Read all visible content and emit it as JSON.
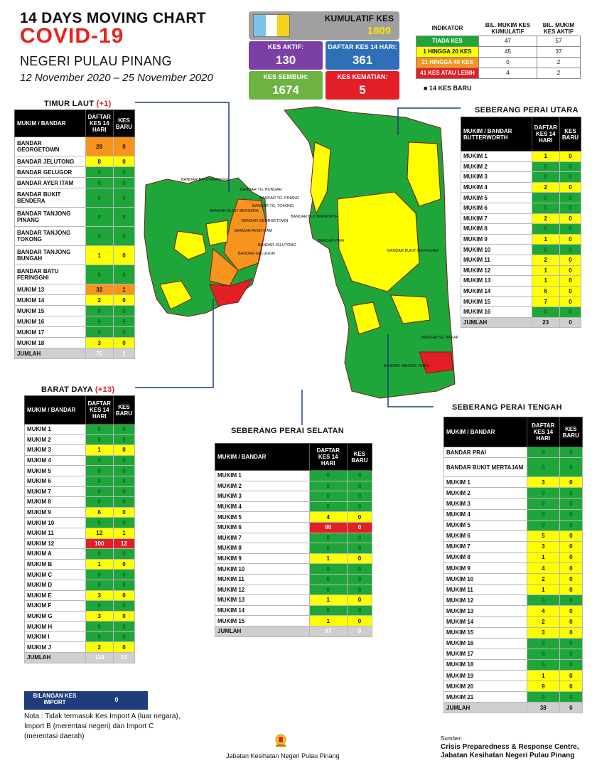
{
  "header": {
    "line1": "14  DAYS MOVING CHART",
    "line2": "COVID-19",
    "line3": "NEGERI PULAU PINANG",
    "line4": "12 November 2020 – 25 November 2020"
  },
  "stats": {
    "kumulatif": {
      "label": "KUMULATIF KES",
      "value": "1809"
    },
    "aktif": {
      "label": "KES AKTIF:",
      "value": "130"
    },
    "daftar14": {
      "label": "DAFTAR KES 14 HARI:",
      "value": "361"
    },
    "sembuh": {
      "label": "KES SEMBUH:",
      "value": "1674"
    },
    "kematian": {
      "label": "KES KEMATIAN:",
      "value": "5"
    }
  },
  "indicator": {
    "col0": "INDIKATOR",
    "col1": "BIL. MUKIM KES KUMULATIF",
    "col2": "BIL. MUKIM KES AKTIF",
    "rows": [
      {
        "label": "TIADA KES",
        "kum": "47",
        "aktif": "57",
        "color": "#1fa63a"
      },
      {
        "label": "1 HINGGA 20 KES",
        "kum": "45",
        "aktif": "37",
        "color": "#ffff00"
      },
      {
        "label": "21 HINGGA 40 KES",
        "kum": "0",
        "aktif": "2",
        "color": "#f7941d"
      },
      {
        "label": "41 KES ATAU LEBIH",
        "kum": "4",
        "aktif": "2",
        "color": "#e41e26"
      }
    ],
    "note": "■  14 KES BARU"
  },
  "timur_laut": {
    "title": "TIMUR LAUT",
    "delta": "(+1)",
    "headers": [
      "MUKIM / BANDAR",
      "DAFTAR KES 14 HARI",
      "KES BARU"
    ],
    "rows": [
      {
        "name": "BANDAR GEORGETOWN",
        "d": "29",
        "b": "0",
        "dc": "o",
        "bc": "o"
      },
      {
        "name": "BANDAR JELUTONG",
        "d": "8",
        "b": "0",
        "dc": "y",
        "bc": "y"
      },
      {
        "name": "BANDAR GELUGOR",
        "d": "0",
        "b": "0",
        "dc": "g",
        "bc": "g"
      },
      {
        "name": "BANDAR AYER ITAM",
        "d": "0",
        "b": "0",
        "dc": "g",
        "bc": "g"
      },
      {
        "name": "BANDAR BUKIT BENDERA",
        "d": "0",
        "b": "0",
        "dc": "g",
        "bc": "g"
      },
      {
        "name": "BANDAR TANJONG PINANG",
        "d": "0",
        "b": "0",
        "dc": "g",
        "bc": "g"
      },
      {
        "name": "BANDAR TANJONG TOKONG",
        "d": "0",
        "b": "0",
        "dc": "g",
        "bc": "g"
      },
      {
        "name": "BANDAR TANJONG BUNGAH",
        "d": "1",
        "b": "0",
        "dc": "y",
        "bc": "y"
      },
      {
        "name": "BANDAR BATU FERINGGHI",
        "d": "0",
        "b": "0",
        "dc": "g",
        "bc": "g"
      },
      {
        "name": "MUKIM 13",
        "d": "32",
        "b": "1",
        "dc": "o",
        "bc": "o"
      },
      {
        "name": "MUKIM 14",
        "d": "2",
        "b": "0",
        "dc": "y",
        "bc": "y"
      },
      {
        "name": "MUKIM 15",
        "d": "0",
        "b": "0",
        "dc": "g",
        "bc": "g"
      },
      {
        "name": "MUKIM 16",
        "d": "0",
        "b": "0",
        "dc": "g",
        "bc": "g"
      },
      {
        "name": "MUKIM 17",
        "d": "0",
        "b": "0",
        "dc": "g",
        "bc": "g"
      },
      {
        "name": "MUKIM 18",
        "d": "3",
        "b": "0",
        "dc": "y",
        "bc": "y"
      }
    ],
    "total": {
      "name": "JUMLAH",
      "d": "75",
      "b": "1"
    }
  },
  "barat_daya": {
    "title": "BARAT DAYA",
    "delta": "(+13)",
    "headers": [
      "MUKIM / BANDAR",
      "DAFTAR KES 14 HARI",
      "KES BARU"
    ],
    "rows": [
      {
        "name": "MUKIM 1",
        "d": "0",
        "b": "0",
        "dc": "g",
        "bc": "g"
      },
      {
        "name": "MUKIM 2",
        "d": "0",
        "b": "0",
        "dc": "g",
        "bc": "g"
      },
      {
        "name": "MUKIM 3",
        "d": "1",
        "b": "0",
        "dc": "y",
        "bc": "y"
      },
      {
        "name": "MUKIM 4",
        "d": "0",
        "b": "0",
        "dc": "g",
        "bc": "g"
      },
      {
        "name": "MUKIM 5",
        "d": "0",
        "b": "0",
        "dc": "g",
        "bc": "g"
      },
      {
        "name": "MUKIM 6",
        "d": "0",
        "b": "0",
        "dc": "g",
        "bc": "g"
      },
      {
        "name": "MUKIM 7",
        "d": "0",
        "b": "0",
        "dc": "g",
        "bc": "g"
      },
      {
        "name": "MUKIM 8",
        "d": "0",
        "b": "0",
        "dc": "g",
        "bc": "g"
      },
      {
        "name": "MUKIM 9",
        "d": "6",
        "b": "0",
        "dc": "y",
        "bc": "y"
      },
      {
        "name": "MUKIM 10",
        "d": "0",
        "b": "0",
        "dc": "g",
        "bc": "g"
      },
      {
        "name": "MUKIM 11",
        "d": "12",
        "b": "1",
        "dc": "y",
        "bc": "y"
      },
      {
        "name": "MUKIM 12",
        "d": "100",
        "b": "12",
        "dc": "r",
        "bc": "r"
      },
      {
        "name": "MUKIM A",
        "d": "0",
        "b": "0",
        "dc": "g",
        "bc": "g"
      },
      {
        "name": "MUKIM B",
        "d": "1",
        "b": "0",
        "dc": "y",
        "bc": "y"
      },
      {
        "name": "MUKIM C",
        "d": "0",
        "b": "0",
        "dc": "g",
        "bc": "g"
      },
      {
        "name": "MUKIM D",
        "d": "0",
        "b": "0",
        "dc": "g",
        "bc": "g"
      },
      {
        "name": "MUKIM E",
        "d": "3",
        "b": "0",
        "dc": "y",
        "bc": "y"
      },
      {
        "name": "MUKIM F",
        "d": "0",
        "b": "0",
        "dc": "g",
        "bc": "g"
      },
      {
        "name": "MUKIM G",
        "d": "3",
        "b": "0",
        "dc": "y",
        "bc": "y"
      },
      {
        "name": "MUKIM H",
        "d": "0",
        "b": "0",
        "dc": "g",
        "bc": "g"
      },
      {
        "name": "MUKIM I",
        "d": "0",
        "b": "0",
        "dc": "g",
        "bc": "g"
      },
      {
        "name": "MUKIM J",
        "d": "2",
        "b": "0",
        "dc": "y",
        "bc": "y"
      }
    ],
    "total": {
      "name": "JUMLAH",
      "d": "128",
      "b": "13"
    }
  },
  "spu": {
    "title": "SEBERANG PERAI UTARA",
    "headers": [
      "MUKIM / BANDAR BUTTERWORTH",
      "DAFTAR KES 14 HARI",
      "KES BARU"
    ],
    "rows": [
      {
        "name": "MUKIM 1",
        "d": "1",
        "b": "0",
        "dc": "y",
        "bc": "y"
      },
      {
        "name": "MUKIM 2",
        "d": "0",
        "b": "0",
        "dc": "g",
        "bc": "g"
      },
      {
        "name": "MUKIM 3",
        "d": "0",
        "b": "0",
        "dc": "g",
        "bc": "g"
      },
      {
        "name": "MUKIM 4",
        "d": "2",
        "b": "0",
        "dc": "y",
        "bc": "y"
      },
      {
        "name": "MUKIM 5",
        "d": "0",
        "b": "0",
        "dc": "g",
        "bc": "g"
      },
      {
        "name": "MUKIM 6",
        "d": "0",
        "b": "0",
        "dc": "g",
        "bc": "g"
      },
      {
        "name": "MUKIM 7",
        "d": "2",
        "b": "0",
        "dc": "y",
        "bc": "y"
      },
      {
        "name": "MUKIM 8",
        "d": "0",
        "b": "0",
        "dc": "g",
        "bc": "g"
      },
      {
        "name": "MUKIM 9",
        "d": "1",
        "b": "0",
        "dc": "y",
        "bc": "y"
      },
      {
        "name": "MUKIM 10",
        "d": "0",
        "b": "0",
        "dc": "g",
        "bc": "g"
      },
      {
        "name": "MUKIM 11",
        "d": "2",
        "b": "0",
        "dc": "y",
        "bc": "y"
      },
      {
        "name": "MUKIM 12",
        "d": "1",
        "b": "0",
        "dc": "y",
        "bc": "y"
      },
      {
        "name": "MUKIM 13",
        "d": "1",
        "b": "0",
        "dc": "y",
        "bc": "y"
      },
      {
        "name": "MUKIM 14",
        "d": "6",
        "b": "0",
        "dc": "y",
        "bc": "y"
      },
      {
        "name": "MUKIM 15",
        "d": "7",
        "b": "0",
        "dc": "y",
        "bc": "y"
      },
      {
        "name": "MUKIM 16",
        "d": "0",
        "b": "0",
        "dc": "g",
        "bc": "g"
      }
    ],
    "total": {
      "name": "JUMLAH",
      "d": "23",
      "b": "0"
    }
  },
  "sps": {
    "title": "SEBERANG PERAI SELATAN",
    "headers": [
      "MUKIM / BANDAR",
      "DAFTAR KES 14 HARI",
      "KES BARU"
    ],
    "rows": [
      {
        "name": "MUKIM 1",
        "d": "0",
        "b": "0",
        "dc": "g",
        "bc": "g"
      },
      {
        "name": "MUKIM 2",
        "d": "0",
        "b": "0",
        "dc": "g",
        "bc": "g"
      },
      {
        "name": "MUKIM 3",
        "d": "0",
        "b": "0",
        "dc": "g",
        "bc": "g"
      },
      {
        "name": "MUKIM 4",
        "d": "0",
        "b": "0",
        "dc": "g",
        "bc": "g"
      },
      {
        "name": "MUKIM 5",
        "d": "4",
        "b": "0",
        "dc": "y",
        "bc": "y"
      },
      {
        "name": "MUKIM 6",
        "d": "90",
        "b": "0",
        "dc": "r",
        "bc": "r"
      },
      {
        "name": "MUKIM 7",
        "d": "0",
        "b": "0",
        "dc": "g",
        "bc": "g"
      },
      {
        "name": "MUKIM 8",
        "d": "0",
        "b": "0",
        "dc": "g",
        "bc": "g"
      },
      {
        "name": "MUKIM 9",
        "d": "1",
        "b": "0",
        "dc": "y",
        "bc": "y"
      },
      {
        "name": "MUKIM 10",
        "d": "0",
        "b": "0",
        "dc": "g",
        "bc": "g"
      },
      {
        "name": "MUKIM 11",
        "d": "0",
        "b": "0",
        "dc": "g",
        "bc": "g"
      },
      {
        "name": "MUKIM 12",
        "d": "0",
        "b": "0",
        "dc": "g",
        "bc": "g"
      },
      {
        "name": "MUKIM 13",
        "d": "1",
        "b": "0",
        "dc": "y",
        "bc": "y"
      },
      {
        "name": "MUKIM 14",
        "d": "0",
        "b": "0",
        "dc": "g",
        "bc": "g"
      },
      {
        "name": "MUKIM 15",
        "d": "1",
        "b": "0",
        "dc": "y",
        "bc": "y"
      }
    ],
    "total": {
      "name": "JUMLAH",
      "d": "97",
      "b": "0"
    }
  },
  "spt": {
    "title": "SEBERANG PERAI TENGAH",
    "headers": [
      "MUKIM / BANDAR",
      "DAFTAR KES 14 HARI",
      "KES BARU"
    ],
    "rows": [
      {
        "name": "BANDAR PRAI",
        "d": "0",
        "b": "0",
        "dc": "g",
        "bc": "g"
      },
      {
        "name": "BANDAR BUKIT MERTAJAM",
        "d": "0",
        "b": "0",
        "dc": "g",
        "bc": "g"
      },
      {
        "name": "MUKIM 1",
        "d": "3",
        "b": "0",
        "dc": "y",
        "bc": "y"
      },
      {
        "name": "MUKIM 2",
        "d": "0",
        "b": "0",
        "dc": "g",
        "bc": "g"
      },
      {
        "name": "MUKIM 3",
        "d": "0",
        "b": "0",
        "dc": "g",
        "bc": "g"
      },
      {
        "name": "MUKIM 4",
        "d": "0",
        "b": "0",
        "dc": "g",
        "bc": "g"
      },
      {
        "name": "MUKIM 5",
        "d": "0",
        "b": "0",
        "dc": "g",
        "bc": "g"
      },
      {
        "name": "MUKIM 6",
        "d": "5",
        "b": "0",
        "dc": "y",
        "bc": "y"
      },
      {
        "name": "MUKIM 7",
        "d": "3",
        "b": "0",
        "dc": "y",
        "bc": "y"
      },
      {
        "name": "MUKIM 8",
        "d": "1",
        "b": "0",
        "dc": "y",
        "bc": "y"
      },
      {
        "name": "MUKIM 9",
        "d": "4",
        "b": "0",
        "dc": "y",
        "bc": "y"
      },
      {
        "name": "MUKIM 10",
        "d": "2",
        "b": "0",
        "dc": "y",
        "bc": "y"
      },
      {
        "name": "MUKIM 11",
        "d": "1",
        "b": "0",
        "dc": "y",
        "bc": "y"
      },
      {
        "name": "MUKIM 12",
        "d": "0",
        "b": "0",
        "dc": "g",
        "bc": "g"
      },
      {
        "name": "MUKIM 13",
        "d": "4",
        "b": "0",
        "dc": "y",
        "bc": "y"
      },
      {
        "name": "MUKIM 14",
        "d": "2",
        "b": "0",
        "dc": "y",
        "bc": "y"
      },
      {
        "name": "MUKIM 15",
        "d": "3",
        "b": "0",
        "dc": "y",
        "bc": "y"
      },
      {
        "name": "MUKIM 16",
        "d": "0",
        "b": "0",
        "dc": "g",
        "bc": "g"
      },
      {
        "name": "MUKIM 17",
        "d": "0",
        "b": "0",
        "dc": "g",
        "bc": "g"
      },
      {
        "name": "MUKIM 18",
        "d": "0",
        "b": "0",
        "dc": "g",
        "bc": "g"
      },
      {
        "name": "MUKIM 19",
        "d": "1",
        "b": "0",
        "dc": "y",
        "bc": "y"
      },
      {
        "name": "MUKIM 20",
        "d": "9",
        "b": "0",
        "dc": "y",
        "bc": "y"
      },
      {
        "name": "MUKIM 21",
        "d": "0",
        "b": "0",
        "dc": "g",
        "bc": "g"
      }
    ],
    "total": {
      "name": "JUMLAH",
      "d": "38",
      "b": "0"
    }
  },
  "map_labels": {
    "towns": [
      "BANDAR BATU FERINGGI",
      "BANDAR TG. BUNGAH",
      "BANDAR TG. PINANG",
      "BANDAR TG. TOKONG",
      "BANDAR BUKIT BENDERA",
      "BANDAR GEORGETOWN",
      "BANDAR AYER ITAM",
      "BANDAR JELUTONG",
      "BANDAR GELUGOR",
      "BANDAR BUTTERWORTH",
      "BANDAR PRAI",
      "BANDAR BUKIT MERTAJAM",
      "BANDAR SG BAKAP",
      "BANDAR NIBONG TEBAL"
    ]
  },
  "import": {
    "label": "BILANGAN KES IMPORT",
    "value": "0"
  },
  "note": "Nota : Tidak termasuk Kes Import A (luar negara), Import B (merentasi negeri) dan Import C (merentasi daerah)",
  "footer": "Jabatan Kesihatan Negeri Pulau Pinang",
  "source": {
    "label": "Sumber:",
    "line1": "Crisis Preparedness & Response Centre,",
    "line2": "Jabatan Kesihatan Negeri Pulau Pinang"
  },
  "colors": {
    "green": "#1fa63a",
    "yellow": "#ffff00",
    "orange": "#f7941d",
    "red": "#e41e26",
    "purple": "#7b3fa6",
    "blue": "#2f6fb8",
    "lightgreen": "#6db33f"
  }
}
